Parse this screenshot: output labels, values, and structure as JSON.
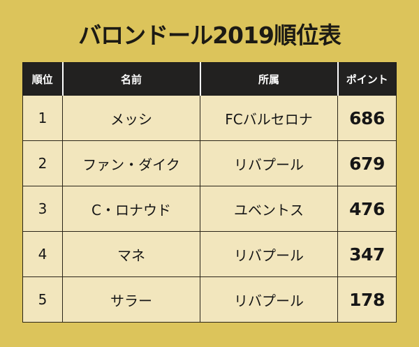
{
  "title": "バロンドール2019順位表",
  "table": {
    "headers": [
      "順位",
      "名前",
      "所属",
      "ポイント"
    ],
    "rows": [
      {
        "rank": "1",
        "name": "メッシ",
        "club": "FCバルセロナ",
        "points": "686"
      },
      {
        "rank": "2",
        "name": "ファン・ダイク",
        "club": "リバプール",
        "points": "679"
      },
      {
        "rank": "3",
        "name": "C・ロナウド",
        "club": "ユベントス",
        "points": "476"
      },
      {
        "rank": "4",
        "name": "マネ",
        "club": "リバプール",
        "points": "347"
      },
      {
        "rank": "5",
        "name": "サラー",
        "club": "リバプール",
        "points": "178"
      }
    ]
  },
  "colors": {
    "background": "#dcc45b",
    "header_bg": "#222120",
    "cell_bg": "#f2e6bd",
    "text": "#161616"
  }
}
